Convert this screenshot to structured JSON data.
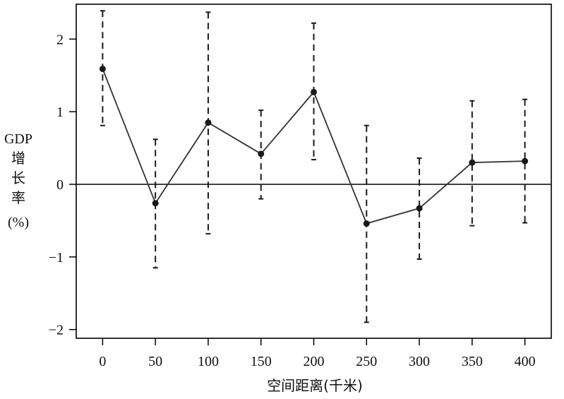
{
  "chart_data": {
    "type": "line",
    "title": "",
    "xlabel": "空间距离(千米)",
    "ylabel": [
      "GDP",
      "增",
      "长",
      "率",
      "(%)"
    ],
    "x": [
      0,
      50,
      100,
      150,
      200,
      250,
      300,
      350,
      400
    ],
    "x_ticks": [
      "0",
      "50",
      "100",
      "150",
      "200",
      "250",
      "300",
      "350",
      "400"
    ],
    "y_ticks": [
      {
        "value": 2,
        "label": "2"
      },
      {
        "value": 1,
        "label": "1"
      },
      {
        "value": 0,
        "label": "0"
      },
      {
        "value": -1,
        "label": "−1"
      },
      {
        "value": -2,
        "label": "−2"
      }
    ],
    "xlim": [
      -25,
      425
    ],
    "ylim": [
      -2.12,
      2.48
    ],
    "series": [
      {
        "values": [
          1.59,
          -0.26,
          0.85,
          0.42,
          1.27,
          -0.54,
          -0.33,
          0.3,
          0.32
        ],
        "lower": [
          0.81,
          -1.15,
          -0.68,
          -0.2,
          0.34,
          -1.9,
          -1.03,
          -0.57,
          -0.53
        ],
        "upper": [
          2.39,
          0.62,
          2.37,
          1.02,
          2.22,
          0.81,
          0.36,
          1.15,
          1.17
        ]
      }
    ],
    "reference_line": 0,
    "grid": false,
    "colors": {
      "line": "#333333",
      "marker": "#1a1a1a",
      "errorbar": "#1a1a1a",
      "axis": "#000000"
    }
  }
}
